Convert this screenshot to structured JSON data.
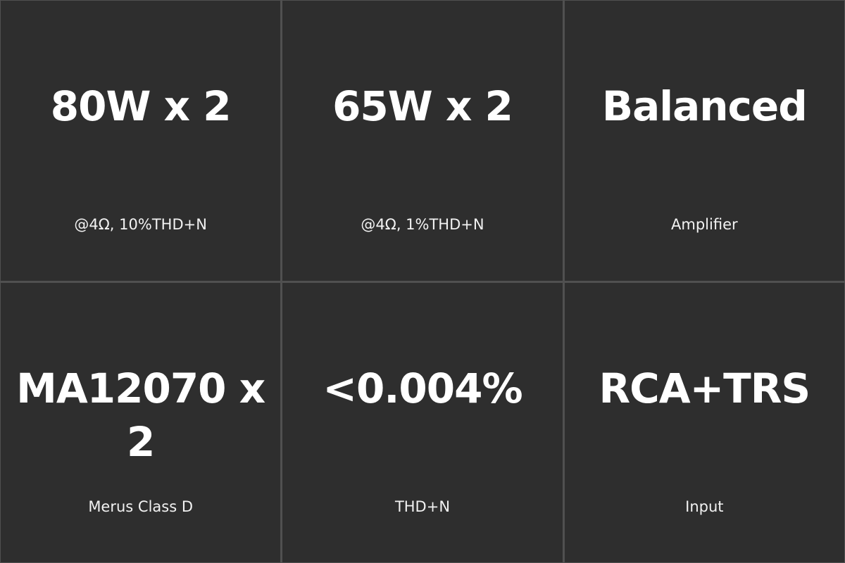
{
  "colors": {
    "background": "#2e2e2e",
    "divider": "#505050",
    "text": "#ffffff"
  },
  "specs": [
    {
      "value": "80W x 2",
      "label": "@4Ω, 10%THD+N"
    },
    {
      "value": "65W x 2",
      "label": "@4Ω, 1%THD+N"
    },
    {
      "value": "Balanced",
      "label": "Amplifier"
    },
    {
      "value": "MA12070 x 2",
      "label": "Merus Class D"
    },
    {
      "value": "<0.004%",
      "label": "THD+N"
    },
    {
      "value": "RCA+TRS",
      "label": "Input"
    }
  ]
}
